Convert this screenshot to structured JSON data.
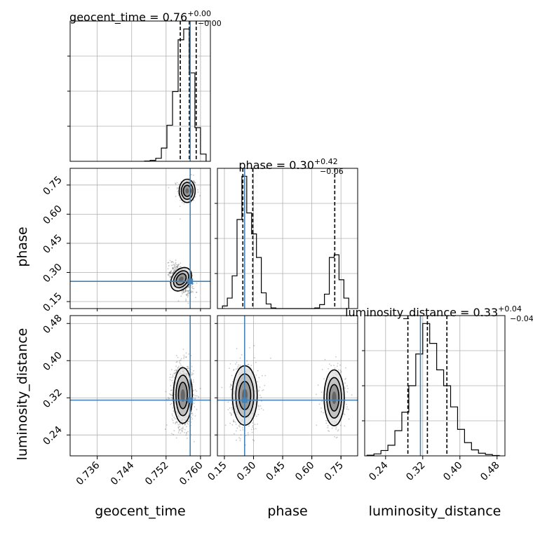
{
  "chart_data": {
    "type": "corner",
    "params": [
      "geocent_time",
      "phase",
      "luminosity_distance"
    ],
    "xlabels": [
      "geocent_time",
      "phase",
      "luminosity_distance"
    ],
    "ylabels": [
      "phase",
      "luminosity_distance"
    ],
    "titles": [
      {
        "param": "geocent_time",
        "base": "geocent_time = 0.76",
        "sup": "+0.00",
        "sub": "−0.00"
      },
      {
        "param": "phase",
        "base": "phase = 0.30",
        "sup": "+0.42",
        "sub": "−0.06"
      },
      {
        "param": "luminosity_distance",
        "base": "luminosity_distance = 0.33",
        "sup": "+0.04",
        "sub": "−0.04"
      }
    ],
    "ranges": {
      "geocent_time": [
        0.7297,
        0.7623
      ],
      "phase": [
        0.114,
        0.836
      ],
      "luminosity_distance": [
        0.195,
        0.497
      ]
    },
    "ticks": {
      "geocent_time": [
        "0.736",
        "0.744",
        "0.752",
        "0.760"
      ],
      "phase": [
        "0.15",
        "0.30",
        "0.45",
        "0.60",
        "0.75"
      ],
      "luminosity_distance": [
        "0.24",
        "0.32",
        "0.40",
        "0.48"
      ]
    },
    "truths": {
      "geocent_time": 0.7576,
      "phase": 0.254,
      "luminosity_distance": 0.315
    },
    "quantiles": {
      "geocent_time": [
        0.7553,
        0.7574,
        0.759
      ],
      "phase": [
        0.245,
        0.296,
        0.718
      ],
      "luminosity_distance": [
        0.288,
        0.33,
        0.372
      ]
    },
    "histograms": {
      "geocent_time": {
        "edges": [
          0.747,
          0.7483,
          0.7496,
          0.7509,
          0.7522,
          0.7535,
          0.7548,
          0.7561,
          0.7574,
          0.7587,
          0.76,
          0.7613
        ],
        "counts": [
          2,
          8,
          25,
          110,
          300,
          580,
          1010,
          1100,
          735,
          280,
          60
        ]
      },
      "phase": {
        "edges": [
          0.14,
          0.165,
          0.19,
          0.215,
          0.24,
          0.265,
          0.29,
          0.315,
          0.34,
          0.365,
          0.39,
          0.415,
          0.44,
          0.465,
          0.49,
          0.515,
          0.54,
          0.565,
          0.59,
          0.615,
          0.64,
          0.665,
          0.69,
          0.715,
          0.74,
          0.765,
          0.79
        ],
        "counts": [
          20,
          80,
          250,
          680,
          1010,
          730,
          570,
          390,
          120,
          35,
          5,
          0,
          0,
          0,
          0,
          0,
          0,
          0,
          0,
          5,
          30,
          110,
          390,
          410,
          220,
          80
        ]
      },
      "luminosity_distance": {
        "edges": [
          0.2,
          0.215,
          0.23,
          0.245,
          0.26,
          0.275,
          0.29,
          0.305,
          0.32,
          0.335,
          0.35,
          0.365,
          0.38,
          0.395,
          0.41,
          0.425,
          0.44,
          0.455,
          0.47,
          0.485
        ],
        "counts": [
          5,
          15,
          40,
          80,
          190,
          330,
          530,
          770,
          1000,
          850,
          650,
          530,
          370,
          200,
          100,
          45,
          20,
          10,
          3
        ]
      }
    },
    "density_2d": [
      {
        "x": "geocent_time",
        "y": "phase",
        "modes": [
          {
            "x": 0.7569,
            "y": 0.72,
            "sx": 0.00093,
            "sy": 0.03,
            "weight": 0.32
          },
          {
            "x": 0.7555,
            "y": 0.265,
            "sx": 0.00105,
            "sy": 0.033,
            "rho": -0.55,
            "weight": 0.68
          }
        ]
      },
      {
        "x": "geocent_time",
        "y": "luminosity_distance",
        "modes": [
          {
            "x": 0.7559,
            "y": 0.325,
            "sx": 0.0011,
            "sy": 0.03,
            "weight": 1.0
          }
        ]
      },
      {
        "x": "phase",
        "y": "luminosity_distance",
        "modes": [
          {
            "x": 0.255,
            "y": 0.325,
            "sx": 0.032,
            "sy": 0.032,
            "weight": 0.68
          },
          {
            "x": 0.715,
            "y": 0.32,
            "sx": 0.026,
            "sy": 0.03,
            "weight": 0.32
          }
        ]
      }
    ],
    "grid": true,
    "truth_color": "#4682b4",
    "line_color": "#000000"
  }
}
